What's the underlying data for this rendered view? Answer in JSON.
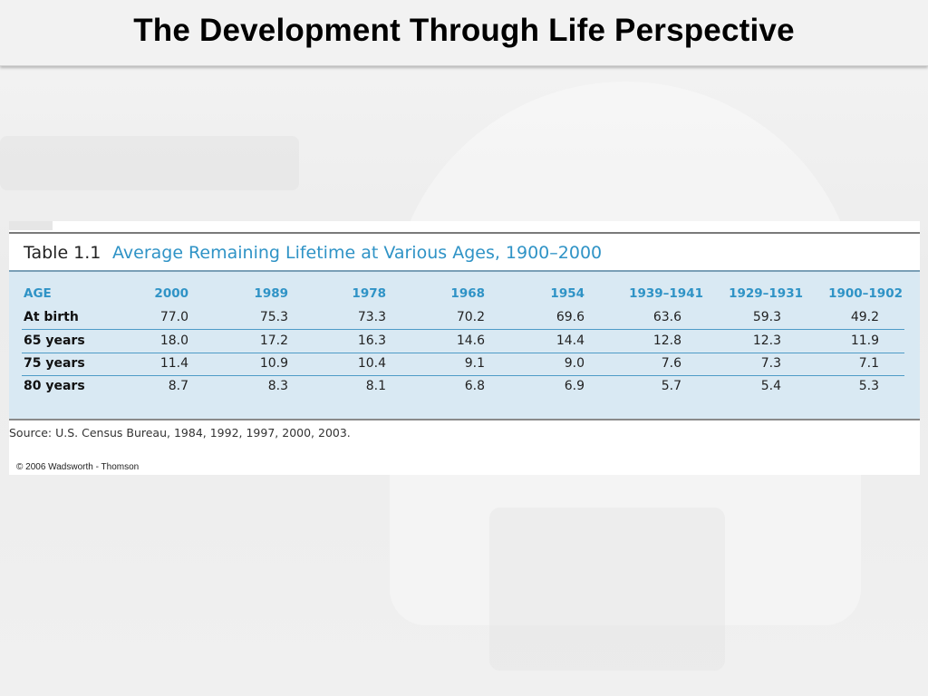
{
  "slide": {
    "title": "The Development Through Life Perspective"
  },
  "table": {
    "label": "Table 1.1",
    "caption": "Average Remaining Lifetime at Various Ages, 1900–2000",
    "header_color": "#2f93c6",
    "fill_color": "#d9e9f3",
    "columns": [
      "AGE",
      "2000",
      "1989",
      "1978",
      "1968",
      "1954",
      "1939–1941",
      "1929–1931",
      "1900–1902"
    ],
    "rows": [
      {
        "label": "At birth",
        "values": [
          "77.0",
          "75.3",
          "73.3",
          "70.2",
          "69.6",
          "63.6",
          "59.3",
          "49.2"
        ]
      },
      {
        "label": "65 years",
        "values": [
          "18.0",
          "17.2",
          "16.3",
          "14.6",
          "14.4",
          "12.8",
          "12.3",
          "11.9"
        ]
      },
      {
        "label": "75 years",
        "values": [
          "11.4",
          "10.9",
          "10.4",
          "9.1",
          "9.0",
          "7.6",
          "7.3",
          "7.1"
        ]
      },
      {
        "label": "80 years",
        "values": [
          "8.7",
          "8.3",
          "8.1",
          "6.8",
          "6.9",
          "5.7",
          "5.4",
          "5.3"
        ]
      }
    ],
    "source": "Source: U.S. Census Bureau, 1984, 1992, 1997, 2000, 2003.",
    "copyright": "© 2006 Wadsworth - Thomson"
  }
}
